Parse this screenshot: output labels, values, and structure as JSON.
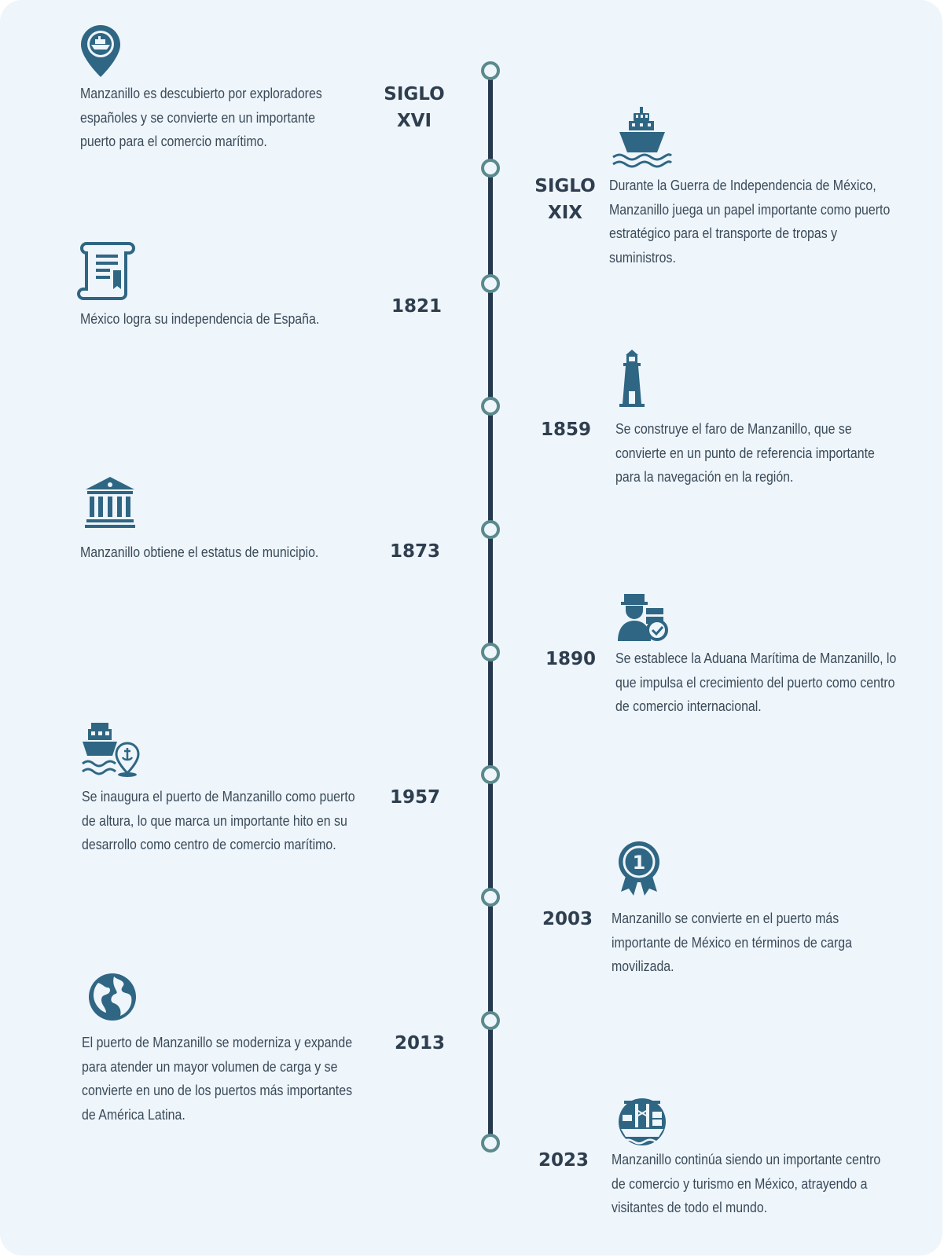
{
  "colors": {
    "icon": "#2f6683",
    "spine": "#26394f",
    "node": "#5a8a8c",
    "text": "#3a4a58",
    "year": "#2f3e4e",
    "background": "#eef5fb"
  },
  "events": [
    {
      "year": "SIGLO\nXVI",
      "text": "Manzanillo es descubierto por exploradores españoles y se convierte en un importante puerto para el comercio marítimo.",
      "icon": "map-pin-ship-icon"
    },
    {
      "year": "SIGLO\nXIX",
      "text": "Durante la Guerra de Independencia de México, Manzanillo juega un papel importante como puerto estratégico para el transporte de tropas y suministros.",
      "icon": "ship-waves-icon"
    },
    {
      "year": "1821",
      "text": "México logra su independencia de España.",
      "icon": "scroll-document-icon"
    },
    {
      "year": "1859",
      "text": "Se construye el faro de Manzanillo, que se convierte en un punto de referencia importante para la navegación en la región.",
      "icon": "lighthouse-icon"
    },
    {
      "year": "1873",
      "text": "Manzanillo obtiene el estatus de municipio.",
      "icon": "government-building-icon"
    },
    {
      "year": "1890",
      "text": "Se establece la Aduana Marítima de Manzanillo, lo que impulsa el crecimiento del puerto como centro de comercio internacional.",
      "icon": "customs-officer-icon"
    },
    {
      "year": "1957",
      "text": "Se inaugura el puerto de Manzanillo como puerto de altura, lo que marca un importante hito en su desarrollo como centro de comercio marítimo.",
      "icon": "ship-anchor-location-icon"
    },
    {
      "year": "2003",
      "text": "Manzanillo se convierte en el puerto más importante de México en términos de carga movilizada.",
      "icon": "first-place-medal-icon"
    },
    {
      "year": "2013",
      "text": "El puerto de Manzanillo se moderniza y expande para atender un mayor volumen de carga y se convierte en uno de los puertos más importantes de América Latina.",
      "icon": "globe-icon"
    },
    {
      "year": "2023",
      "text": "Manzanillo continúa siendo un importante centro de comercio y turismo en México, atrayendo a visitantes de todo el mundo.",
      "icon": "port-crane-icon"
    }
  ]
}
